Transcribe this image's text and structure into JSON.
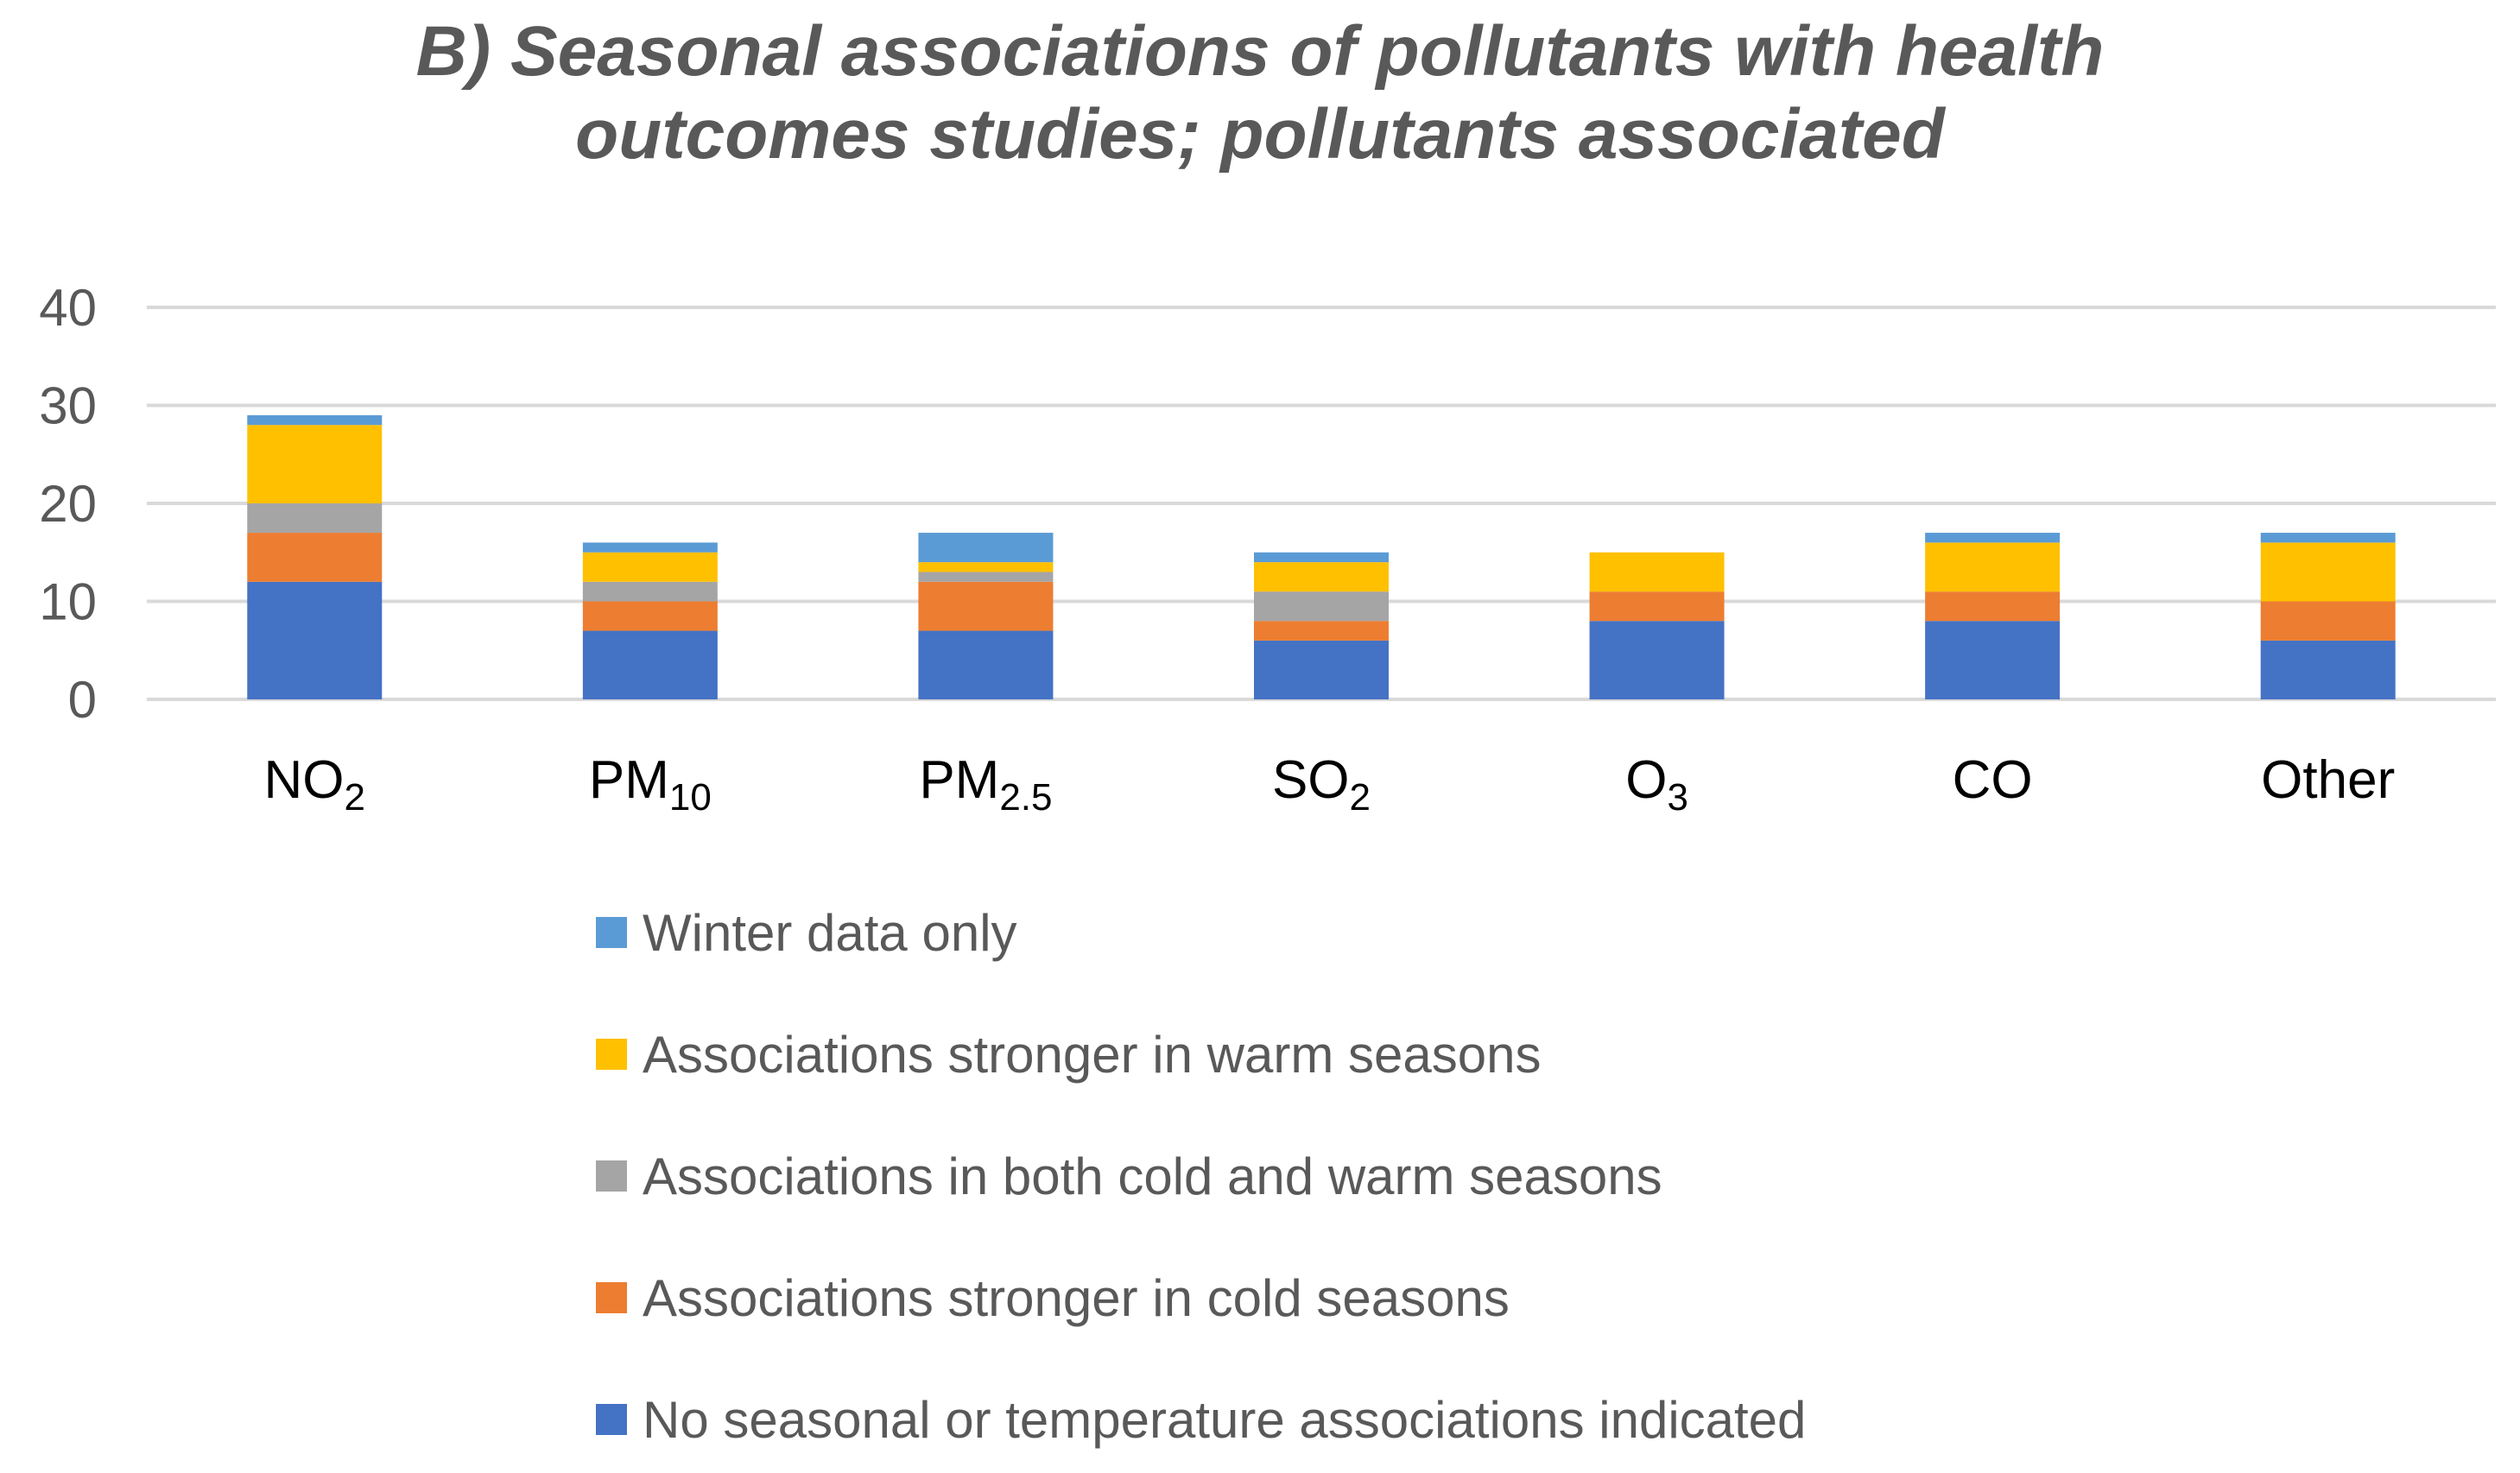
{
  "chart_data": {
    "type": "bar",
    "stacked": true,
    "title_lines": [
      "B) Seasonal associations of pollutants with health",
      "outcomes studies; pollutants associated"
    ],
    "categories": [
      {
        "base": "NO",
        "sub": "2"
      },
      {
        "base": "PM",
        "sub": "10"
      },
      {
        "base": "PM",
        "sub": "2.5"
      },
      {
        "base": "SO",
        "sub": "2"
      },
      {
        "base": "O",
        "sub": "3"
      },
      {
        "base": "CO",
        "sub": ""
      },
      {
        "base": "Other",
        "sub": ""
      }
    ],
    "ylim": [
      0,
      40
    ],
    "yticks": [
      0,
      10,
      20,
      30,
      40
    ],
    "grid": true,
    "legend_position": "bottom",
    "series": [
      {
        "name": "No seasonal or temperature associations indicated",
        "color": "#4472C4",
        "values": [
          12,
          7,
          7,
          6,
          8,
          8,
          6
        ]
      },
      {
        "name": "Associations stronger in cold seasons",
        "color": "#ED7D31",
        "values": [
          5,
          3,
          5,
          2,
          3,
          3,
          4
        ]
      },
      {
        "name": "Associations in both cold and warm seasons",
        "color": "#A5A5A5",
        "values": [
          3,
          2,
          1,
          3,
          0,
          0,
          0
        ]
      },
      {
        "name": "Associations stronger in warm seasons",
        "color": "#FFC000",
        "values": [
          8,
          3,
          1,
          3,
          4,
          5,
          6
        ]
      },
      {
        "name": "Winter data only",
        "color": "#5B9BD5",
        "values": [
          1,
          1,
          3,
          1,
          0,
          1,
          1
        ]
      }
    ],
    "legend_order": [
      4,
      3,
      2,
      1,
      0
    ]
  }
}
